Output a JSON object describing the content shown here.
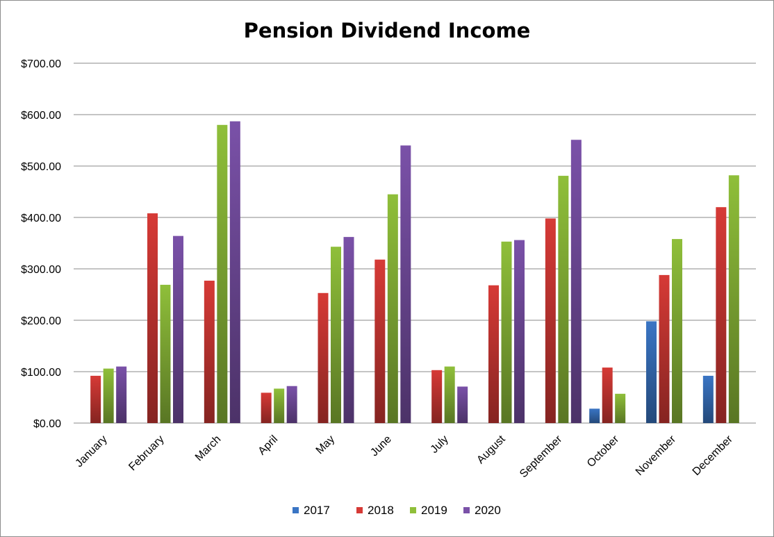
{
  "colors": {
    "2017": "#3a75c4",
    "2018": "#d63a36",
    "2019": "#8fbf3a",
    "2020": "#7a51a8"
  },
  "chart_data": {
    "type": "bar",
    "title": "Pension Dividend Income",
    "xlabel": "",
    "ylabel": "",
    "ylim": [
      0,
      700
    ],
    "yticks": [
      0,
      100,
      200,
      300,
      400,
      500,
      600,
      700
    ],
    "ytick_labels": [
      "$0.00",
      "$100.00",
      "$200.00",
      "$300.00",
      "$400.00",
      "$500.00",
      "$600.00",
      "$700.00"
    ],
    "grid": true,
    "legend_position": "bottom",
    "categories": [
      "January",
      "February",
      "March",
      "April",
      "May",
      "June",
      "July",
      "August",
      "September",
      "October",
      "November",
      "December"
    ],
    "series": [
      {
        "name": "2017",
        "values": [
          0,
          0,
          0,
          0,
          0,
          0,
          0,
          0,
          0,
          28,
          198,
          92
        ]
      },
      {
        "name": "2018",
        "values": [
          92,
          408,
          277,
          59,
          253,
          318,
          103,
          268,
          398,
          108,
          288,
          420
        ]
      },
      {
        "name": "2019",
        "values": [
          106,
          269,
          580,
          67,
          343,
          445,
          110,
          353,
          481,
          57,
          358,
          482
        ]
      },
      {
        "name": "2020",
        "values": [
          110,
          364,
          587,
          72,
          362,
          540,
          71,
          356,
          551,
          0,
          0,
          0
        ]
      }
    ]
  }
}
